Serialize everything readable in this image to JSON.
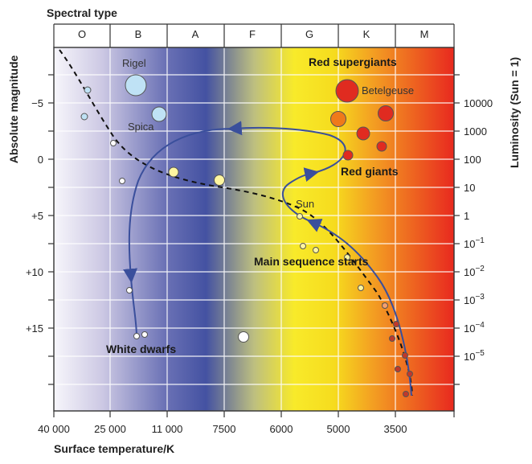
{
  "diagram": {
    "top_axis_title": "Spectral type",
    "spectral_types": [
      "O",
      "B",
      "A",
      "F",
      "G",
      "K",
      "M"
    ],
    "left_axis_title": "Absolute magnitude",
    "left_ticks": [
      "−5",
      "0",
      "+5",
      "+10",
      "+15"
    ],
    "right_axis_title": "Luminosity (Sun = 1)",
    "right_ticks": [
      {
        "base": "10000",
        "exp": ""
      },
      {
        "base": "1000",
        "exp": ""
      },
      {
        "base": "100",
        "exp": ""
      },
      {
        "base": "10",
        "exp": ""
      },
      {
        "base": "1",
        "exp": ""
      },
      {
        "base": "10",
        "exp": "−1"
      },
      {
        "base": "10",
        "exp": "−2"
      },
      {
        "base": "10",
        "exp": "−3"
      },
      {
        "base": "10",
        "exp": "−4"
      },
      {
        "base": "10",
        "exp": "−5"
      }
    ],
    "bottom_axis_title": "Surface temperature/K",
    "bottom_ticks": [
      "40 000",
      "25 000",
      "11 000",
      "7500",
      "6000",
      "5000",
      "3500"
    ],
    "star_labels": {
      "rigel": "Rigel",
      "spica": "Spica",
      "betelgeuse": "Betelgeuse",
      "sun": "Sun"
    },
    "region_labels": {
      "red_supergiants": "Red supergiants",
      "red_giants": "Red giants",
      "main_sequence": "Main sequence starts",
      "white_dwarfs": "White dwarfs"
    },
    "colors": {
      "track": "#3a4f9c",
      "main_sequence_line": "#111111",
      "red_star": "#e02b20",
      "orange_star": "#ef7a1a",
      "yellow_star": "#fff6a0",
      "blue_star": "#bfe2f5"
    }
  }
}
